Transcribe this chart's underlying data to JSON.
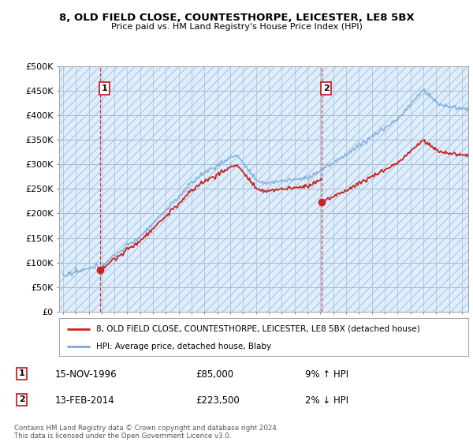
{
  "title1": "8, OLD FIELD CLOSE, COUNTESTHORPE, LEICESTER, LE8 5BX",
  "title2": "Price paid vs. HM Land Registry's House Price Index (HPI)",
  "ylabel_ticks": [
    "£0",
    "£50K",
    "£100K",
    "£150K",
    "£200K",
    "£250K",
    "£300K",
    "£350K",
    "£400K",
    "£450K",
    "£500K"
  ],
  "ytick_values": [
    0,
    50000,
    100000,
    150000,
    200000,
    250000,
    300000,
    350000,
    400000,
    450000,
    500000
  ],
  "ylim": [
    0,
    500000
  ],
  "xlim_start": 1993.7,
  "xlim_end": 2025.5,
  "hpi_color": "#7aaadd",
  "price_color": "#cc2222",
  "sale1_x": 1996.88,
  "sale1_y": 85000,
  "sale1_label": "1",
  "sale2_x": 2014.12,
  "sale2_y": 223500,
  "sale2_label": "2",
  "legend_line1": "8, OLD FIELD CLOSE, COUNTESTHORPE, LEICESTER, LE8 5BX (detached house)",
  "legend_line2": "HPI: Average price, detached house, Blaby",
  "note1_label": "1",
  "note1_date": "15-NOV-1996",
  "note1_price": "£85,000",
  "note1_hpi": "9% ↑ HPI",
  "note2_label": "2",
  "note2_date": "13-FEB-2014",
  "note2_price": "£223,500",
  "note2_hpi": "2% ↓ HPI",
  "footer": "Contains HM Land Registry data © Crown copyright and database right 2024.\nThis data is licensed under the Open Government Licence v3.0.",
  "bg_color": "#ffffff",
  "chart_bg_color": "#ddeeff",
  "hatch_color": "#bbccdd",
  "grid_color": "#aabbcc"
}
